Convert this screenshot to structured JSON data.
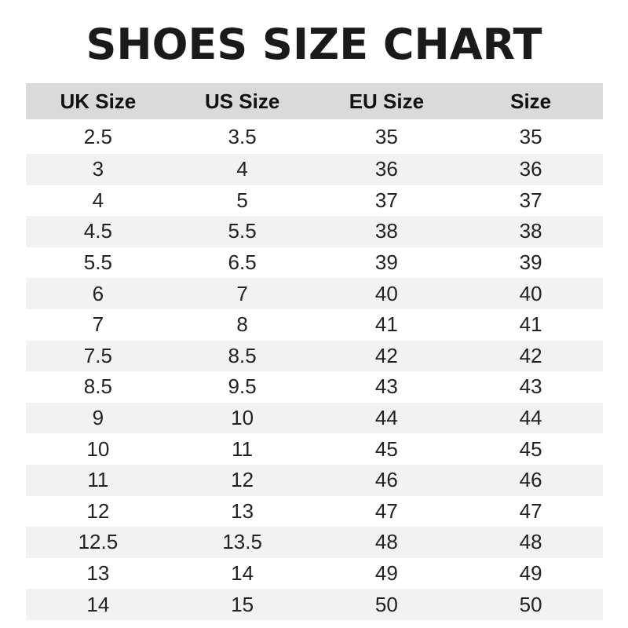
{
  "title": "SHOES SIZE CHART",
  "colors": {
    "header_bg": "#dadada",
    "stripe_bg": "#f2f2f2"
  },
  "table": {
    "headers": [
      "UK Size",
      "US Size",
      "EU Size",
      "Size"
    ],
    "rows": [
      [
        "2.5",
        "3.5",
        "35",
        "35"
      ],
      [
        "3",
        "4",
        "36",
        "36"
      ],
      [
        "4",
        "5",
        "37",
        "37"
      ],
      [
        "4.5",
        "5.5",
        "38",
        "38"
      ],
      [
        "5.5",
        "6.5",
        "39",
        "39"
      ],
      [
        "6",
        "7",
        "40",
        "40"
      ],
      [
        "7",
        "8",
        "41",
        "41"
      ],
      [
        "7.5",
        "8.5",
        "42",
        "42"
      ],
      [
        "8.5",
        "9.5",
        "43",
        "43"
      ],
      [
        "9",
        "10",
        "44",
        "44"
      ],
      [
        "10",
        "11",
        "45",
        "45"
      ],
      [
        "11",
        "12",
        "46",
        "46"
      ],
      [
        "12",
        "13",
        "47",
        "47"
      ],
      [
        "12.5",
        "13.5",
        "48",
        "48"
      ],
      [
        "13",
        "14",
        "49",
        "49"
      ],
      [
        "14",
        "15",
        "50",
        "50"
      ]
    ]
  }
}
